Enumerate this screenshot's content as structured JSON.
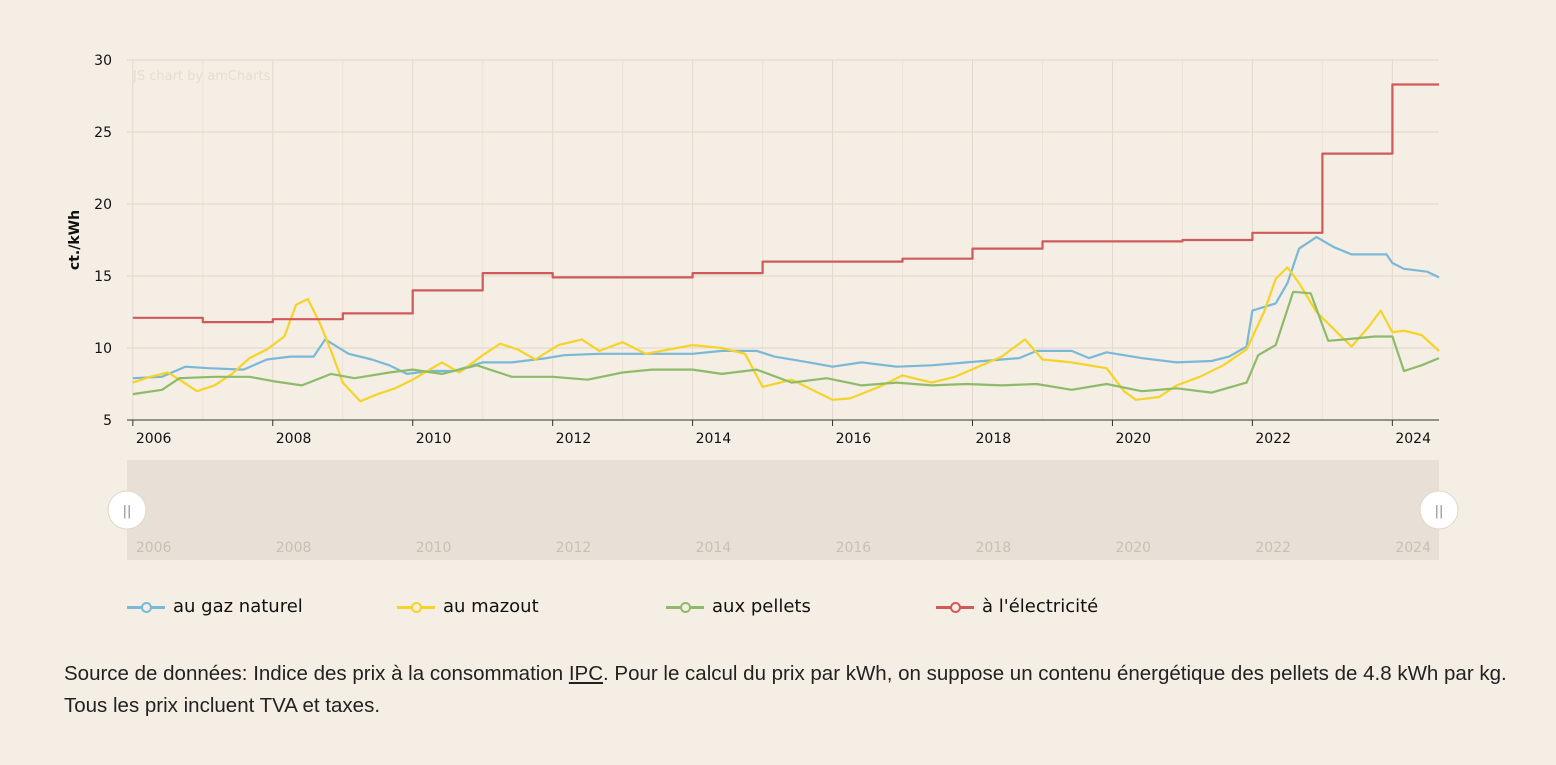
{
  "chart_data": {
    "type": "line",
    "title": "",
    "xlabel": "",
    "ylabel": "ct./kWh",
    "ylim": [
      5,
      30
    ],
    "yticks": [
      "5",
      "10",
      "15",
      "20",
      "25",
      "30"
    ],
    "xlim": [
      "2005-12",
      "2024-09"
    ],
    "xticks": [
      "2006",
      "2008",
      "2010",
      "2012",
      "2014",
      "2016",
      "2018",
      "2020",
      "2022",
      "2024"
    ],
    "grid": true,
    "legend_position": "bottom",
    "credit": "JS chart by amCharts",
    "series": [
      {
        "name": "au gaz naturel",
        "color": "#7ab8d8",
        "points": [
          [
            "2006-01",
            7.9
          ],
          [
            "2006-06",
            8.0
          ],
          [
            "2006-10",
            8.7
          ],
          [
            "2007-02",
            8.6
          ],
          [
            "2007-08",
            8.5
          ],
          [
            "2007-12",
            9.2
          ],
          [
            "2008-04",
            9.4
          ],
          [
            "2008-08",
            9.4
          ],
          [
            "2008-10",
            10.6
          ],
          [
            "2009-02",
            9.6
          ],
          [
            "2009-06",
            9.2
          ],
          [
            "2009-09",
            8.8
          ],
          [
            "2009-12",
            8.2
          ],
          [
            "2010-04",
            8.4
          ],
          [
            "2010-08",
            8.4
          ],
          [
            "2011-01",
            9.0
          ],
          [
            "2011-06",
            9.0
          ],
          [
            "2011-12",
            9.3
          ],
          [
            "2012-03",
            9.5
          ],
          [
            "2012-09",
            9.6
          ],
          [
            "2013-06",
            9.6
          ],
          [
            "2014-01",
            9.6
          ],
          [
            "2014-06",
            9.8
          ],
          [
            "2014-12",
            9.8
          ],
          [
            "2015-03",
            9.4
          ],
          [
            "2015-09",
            9.0
          ],
          [
            "2016-01",
            8.7
          ],
          [
            "2016-06",
            9.0
          ],
          [
            "2016-12",
            8.7
          ],
          [
            "2017-06",
            8.8
          ],
          [
            "2017-12",
            9.0
          ],
          [
            "2018-06",
            9.2
          ],
          [
            "2018-09",
            9.3
          ],
          [
            "2018-12",
            9.8
          ],
          [
            "2019-06",
            9.8
          ],
          [
            "2019-09",
            9.3
          ],
          [
            "2019-12",
            9.7
          ],
          [
            "2020-06",
            9.3
          ],
          [
            "2020-12",
            9.0
          ],
          [
            "2021-06",
            9.1
          ],
          [
            "2021-09",
            9.4
          ],
          [
            "2021-12",
            10.1
          ],
          [
            "2022-01",
            12.6
          ],
          [
            "2022-05",
            13.1
          ],
          [
            "2022-07",
            14.5
          ],
          [
            "2022-09",
            16.9
          ],
          [
            "2022-12",
            17.7
          ],
          [
            "2023-03",
            17.0
          ],
          [
            "2023-06",
            16.5
          ],
          [
            "2023-12",
            16.5
          ],
          [
            "2024-01",
            15.9
          ],
          [
            "2024-03",
            15.5
          ],
          [
            "2024-07",
            15.3
          ],
          [
            "2024-09",
            14.9
          ]
        ]
      },
      {
        "name": "au mazout",
        "color": "#f5d327",
        "points": [
          [
            "2006-01",
            7.6
          ],
          [
            "2006-04",
            8.0
          ],
          [
            "2006-07",
            8.3
          ],
          [
            "2006-09",
            7.8
          ],
          [
            "2006-12",
            7.0
          ],
          [
            "2007-03",
            7.4
          ],
          [
            "2007-06",
            8.2
          ],
          [
            "2007-09",
            9.3
          ],
          [
            "2007-12",
            9.9
          ],
          [
            "2008-03",
            10.8
          ],
          [
            "2008-05",
            13.0
          ],
          [
            "2008-07",
            13.4
          ],
          [
            "2008-09",
            11.8
          ],
          [
            "2008-11",
            9.8
          ],
          [
            "2009-01",
            7.6
          ],
          [
            "2009-04",
            6.3
          ],
          [
            "2009-07",
            6.8
          ],
          [
            "2009-10",
            7.2
          ],
          [
            "2010-01",
            7.8
          ],
          [
            "2010-06",
            9.0
          ],
          [
            "2010-09",
            8.3
          ],
          [
            "2011-01",
            9.5
          ],
          [
            "2011-04",
            10.3
          ],
          [
            "2011-07",
            9.9
          ],
          [
            "2011-10",
            9.2
          ],
          [
            "2012-02",
            10.2
          ],
          [
            "2012-06",
            10.6
          ],
          [
            "2012-09",
            9.8
          ],
          [
            "2013-01",
            10.4
          ],
          [
            "2013-05",
            9.6
          ],
          [
            "2013-09",
            9.9
          ],
          [
            "2014-01",
            10.2
          ],
          [
            "2014-06",
            10.0
          ],
          [
            "2014-10",
            9.6
          ],
          [
            "2015-01",
            7.3
          ],
          [
            "2015-06",
            7.8
          ],
          [
            "2015-10",
            7.0
          ],
          [
            "2016-01",
            6.4
          ],
          [
            "2016-04",
            6.5
          ],
          [
            "2016-09",
            7.3
          ],
          [
            "2017-01",
            8.1
          ],
          [
            "2017-06",
            7.6
          ],
          [
            "2017-10",
            8.0
          ],
          [
            "2018-02",
            8.7
          ],
          [
            "2018-06",
            9.4
          ],
          [
            "2018-10",
            10.6
          ],
          [
            "2019-01",
            9.2
          ],
          [
            "2019-06",
            9.0
          ],
          [
            "2019-12",
            8.6
          ],
          [
            "2020-03",
            7.0
          ],
          [
            "2020-05",
            6.4
          ],
          [
            "2020-09",
            6.6
          ],
          [
            "2020-12",
            7.4
          ],
          [
            "2021-04",
            8.0
          ],
          [
            "2021-08",
            8.8
          ],
          [
            "2021-12",
            9.9
          ],
          [
            "2022-03",
            12.5
          ],
          [
            "2022-05",
            14.8
          ],
          [
            "2022-07",
            15.6
          ],
          [
            "2022-09",
            14.5
          ],
          [
            "2022-12",
            12.5
          ],
          [
            "2023-03",
            11.3
          ],
          [
            "2023-06",
            10.1
          ],
          [
            "2023-09",
            11.5
          ],
          [
            "2023-11",
            12.6
          ],
          [
            "2024-01",
            11.1
          ],
          [
            "2024-03",
            11.2
          ],
          [
            "2024-06",
            10.9
          ],
          [
            "2024-09",
            9.8
          ]
        ]
      },
      {
        "name": "aux pellets",
        "color": "#8dbb6a",
        "points": [
          [
            "2006-01",
            6.8
          ],
          [
            "2006-06",
            7.1
          ],
          [
            "2006-09",
            7.9
          ],
          [
            "2007-03",
            8.0
          ],
          [
            "2007-09",
            8.0
          ],
          [
            "2008-01",
            7.7
          ],
          [
            "2008-06",
            7.4
          ],
          [
            "2008-11",
            8.2
          ],
          [
            "2009-03",
            7.9
          ],
          [
            "2009-09",
            8.3
          ],
          [
            "2010-01",
            8.5
          ],
          [
            "2010-06",
            8.2
          ],
          [
            "2010-12",
            8.8
          ],
          [
            "2011-06",
            8.0
          ],
          [
            "2012-01",
            8.0
          ],
          [
            "2012-07",
            7.8
          ],
          [
            "2013-01",
            8.3
          ],
          [
            "2013-06",
            8.5
          ],
          [
            "2014-01",
            8.5
          ],
          [
            "2014-06",
            8.2
          ],
          [
            "2014-12",
            8.5
          ],
          [
            "2015-06",
            7.6
          ],
          [
            "2015-12",
            7.9
          ],
          [
            "2016-06",
            7.4
          ],
          [
            "2016-12",
            7.6
          ],
          [
            "2017-06",
            7.4
          ],
          [
            "2017-12",
            7.5
          ],
          [
            "2018-06",
            7.4
          ],
          [
            "2018-12",
            7.5
          ],
          [
            "2019-06",
            7.1
          ],
          [
            "2019-12",
            7.5
          ],
          [
            "2020-06",
            7.0
          ],
          [
            "2020-12",
            7.2
          ],
          [
            "2021-06",
            6.9
          ],
          [
            "2021-12",
            7.6
          ],
          [
            "2022-02",
            9.5
          ],
          [
            "2022-05",
            10.2
          ],
          [
            "2022-08",
            13.9
          ],
          [
            "2022-11",
            13.8
          ],
          [
            "2023-02",
            10.5
          ],
          [
            "2023-05",
            10.6
          ],
          [
            "2023-10",
            10.8
          ],
          [
            "2024-01",
            10.8
          ],
          [
            "2024-03",
            8.4
          ],
          [
            "2024-06",
            8.8
          ],
          [
            "2024-09",
            9.3
          ]
        ]
      },
      {
        "name": "à l'électricité",
        "color": "#d05a5a",
        "step": true,
        "points": [
          [
            "2006-01",
            12.1
          ],
          [
            "2007-01",
            11.8
          ],
          [
            "2008-01",
            12.0
          ],
          [
            "2009-01",
            12.4
          ],
          [
            "2010-01",
            14.0
          ],
          [
            "2011-01",
            15.2
          ],
          [
            "2012-01",
            14.9
          ],
          [
            "2013-01",
            14.9
          ],
          [
            "2014-01",
            15.2
          ],
          [
            "2015-01",
            16.0
          ],
          [
            "2016-01",
            16.0
          ],
          [
            "2017-01",
            16.2
          ],
          [
            "2018-01",
            16.9
          ],
          [
            "2019-01",
            17.4
          ],
          [
            "2020-01",
            17.4
          ],
          [
            "2021-01",
            17.5
          ],
          [
            "2022-01",
            18.0
          ],
          [
            "2023-01",
            23.5
          ],
          [
            "2024-01",
            28.3
          ],
          [
            "2024-09",
            28.3
          ]
        ]
      }
    ]
  },
  "scrollbar": {
    "labels": [
      "2006",
      "2008",
      "2010",
      "2012",
      "2014",
      "2016",
      "2018",
      "2020",
      "2022",
      "2024"
    ],
    "grip_icon": "||"
  },
  "legend": [
    {
      "label": "au gaz naturel",
      "color": "#7ab8d8"
    },
    {
      "label": "au mazout",
      "color": "#f5d327"
    },
    {
      "label": "aux pellets",
      "color": "#8dbb6a"
    },
    {
      "label": "à l'électricité",
      "color": "#d05a5a"
    }
  ],
  "source": {
    "before": "Source de données: Indice des prix à la consommation ",
    "link": "IPC",
    "after": ". Pour le calcul du prix par kWh, on suppose un contenu énergétique des pellets de 4.8 kWh par kg. Tous les prix incluent TVA et taxes."
  }
}
